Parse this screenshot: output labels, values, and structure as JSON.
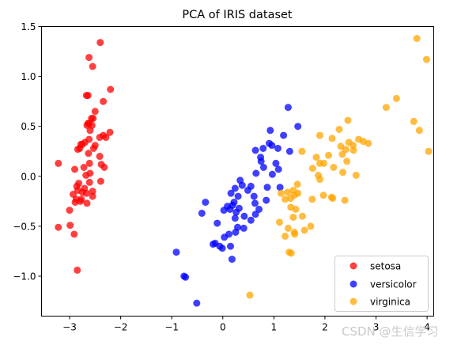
{
  "chart_data": {
    "type": "scatter",
    "title": "PCA of IRIS dataset",
    "xlabel": "",
    "ylabel": "",
    "xlim": [
      -3.55,
      4.13
    ],
    "ylim": [
      -1.4,
      1.5
    ],
    "xticks": [
      -3,
      -2,
      -1,
      0,
      1,
      2,
      3,
      4
    ],
    "xtick_labels": [
      "−3",
      "−2",
      "−1",
      "0",
      "1",
      "2",
      "3",
      "4"
    ],
    "yticks": [
      -1.0,
      -0.5,
      0.0,
      0.5,
      1.0,
      1.5
    ],
    "ytick_labels": [
      "−1.0",
      "−0.5",
      "0.0",
      "0.5",
      "1.0",
      "1.5"
    ],
    "grid": false,
    "legend": "lower-right",
    "marker_alpha": 0.75,
    "series": [
      {
        "name": "setosa",
        "color": "#ff0000",
        "points": [
          [
            -2.4,
            1.34
          ],
          [
            -2.62,
            1.19
          ],
          [
            -2.55,
            1.1
          ],
          [
            -2.67,
            0.81
          ],
          [
            -2.64,
            0.81
          ],
          [
            -2.2,
            0.87
          ],
          [
            -2.34,
            0.75
          ],
          [
            -2.5,
            0.65
          ],
          [
            -2.57,
            0.58
          ],
          [
            -2.54,
            0.58
          ],
          [
            -2.62,
            0.53
          ],
          [
            -2.56,
            0.51
          ],
          [
            -2.64,
            0.53
          ],
          [
            -2.66,
            0.51
          ],
          [
            -2.21,
            0.44
          ],
          [
            -2.34,
            0.41
          ],
          [
            -2.29,
            0.39
          ],
          [
            -2.41,
            0.39
          ],
          [
            -2.6,
            0.46
          ],
          [
            -2.5,
            0.31
          ],
          [
            -2.62,
            0.37
          ],
          [
            -2.7,
            0.34
          ],
          [
            -2.75,
            0.32
          ],
          [
            -2.78,
            0.32
          ],
          [
            -2.84,
            0.27
          ],
          [
            -2.8,
            0.28
          ],
          [
            -2.53,
            0.28
          ],
          [
            -2.63,
            0.23
          ],
          [
            -2.41,
            0.2
          ],
          [
            -3.22,
            0.13
          ],
          [
            -2.38,
            0.12
          ],
          [
            -2.61,
            0.13
          ],
          [
            -2.9,
            0.07
          ],
          [
            -2.72,
            0.09
          ],
          [
            -2.32,
            0.09
          ],
          [
            -2.68,
            0.01
          ],
          [
            -2.6,
            0.03
          ],
          [
            -2.39,
            -0.05
          ],
          [
            -2.61,
            -0.06
          ],
          [
            -2.82,
            -0.07
          ],
          [
            -2.86,
            -0.1
          ],
          [
            -2.71,
            -0.12
          ],
          [
            -2.84,
            -0.14
          ],
          [
            -2.93,
            -0.18
          ],
          [
            -2.55,
            -0.15
          ],
          [
            -2.75,
            -0.16
          ],
          [
            -2.67,
            -0.17
          ],
          [
            -2.87,
            -0.23
          ],
          [
            -2.79,
            -0.25
          ],
          [
            -2.66,
            -0.27
          ],
          [
            -2.77,
            -0.23
          ],
          [
            -2.55,
            -0.2
          ],
          [
            -3.0,
            -0.34
          ],
          [
            -2.89,
            -0.26
          ],
          [
            -3.22,
            -0.51
          ],
          [
            -2.99,
            -0.49
          ],
          [
            -2.91,
            -0.58
          ],
          [
            -2.85,
            -0.94
          ]
        ]
      },
      {
        "name": "versicolor",
        "color": "#0000ff",
        "points": [
          [
            1.28,
            0.69
          ],
          [
            0.93,
            0.46
          ],
          [
            1.47,
            0.5
          ],
          [
            1.19,
            0.41
          ],
          [
            0.91,
            0.33
          ],
          [
            0.96,
            0.31
          ],
          [
            0.79,
            0.28
          ],
          [
            0.64,
            0.26
          ],
          [
            1.08,
            0.28
          ],
          [
            1.31,
            0.25
          ],
          [
            0.74,
            0.19
          ],
          [
            0.75,
            0.15
          ],
          [
            1.04,
            0.13
          ],
          [
            0.8,
            0.09
          ],
          [
            1.09,
            0.07
          ],
          [
            0.65,
            0.03
          ],
          [
            0.97,
            0.02
          ],
          [
            0.34,
            -0.04
          ],
          [
            0.38,
            -0.09
          ],
          [
            0.55,
            -0.1
          ],
          [
            0.87,
            -0.11
          ],
          [
            0.24,
            -0.12
          ],
          [
            0.49,
            -0.14
          ],
          [
            1.12,
            -0.11
          ],
          [
            0.16,
            -0.17
          ],
          [
            0.3,
            -0.2
          ],
          [
            0.22,
            -0.26
          ],
          [
            -0.34,
            -0.26
          ],
          [
            0.61,
            -0.2
          ],
          [
            0.85,
            -0.24
          ],
          [
            0.09,
            -0.3
          ],
          [
            0.19,
            -0.29
          ],
          [
            0.32,
            -0.32
          ],
          [
            0.63,
            -0.27
          ],
          [
            0.26,
            -0.36
          ],
          [
            0.14,
            -0.33
          ],
          [
            0.71,
            -0.33
          ],
          [
            0.02,
            -0.34
          ],
          [
            -0.41,
            -0.37
          ],
          [
            0.42,
            -0.4
          ],
          [
            0.24,
            -0.42
          ],
          [
            0.64,
            -0.38
          ],
          [
            0.55,
            -0.44
          ],
          [
            -0.11,
            -0.47
          ],
          [
            0.29,
            -0.51
          ],
          [
            0.25,
            -0.56
          ],
          [
            0.12,
            -0.58
          ],
          [
            0.03,
            -0.61
          ],
          [
            0.41,
            -0.52
          ],
          [
            -0.15,
            -0.67
          ],
          [
            -0.19,
            -0.68
          ],
          [
            -0.06,
            -0.7
          ],
          [
            -0.01,
            -0.72
          ],
          [
            0.15,
            -0.7
          ],
          [
            0.18,
            -0.83
          ],
          [
            -0.91,
            -0.76
          ],
          [
            -0.76,
            -1.0
          ],
          [
            -0.73,
            -1.01
          ],
          [
            -0.51,
            -1.27
          ]
        ]
      },
      {
        "name": "virginica",
        "color": "#ffa500",
        "points": [
          [
            3.8,
            1.38
          ],
          [
            3.99,
            1.17
          ],
          [
            3.4,
            0.78
          ],
          [
            3.2,
            0.69
          ],
          [
            2.45,
            0.56
          ],
          [
            3.74,
            0.55
          ],
          [
            2.28,
            0.47
          ],
          [
            3.85,
            0.46
          ],
          [
            1.9,
            0.41
          ],
          [
            2.14,
            0.38
          ],
          [
            2.66,
            0.37
          ],
          [
            2.75,
            0.35
          ],
          [
            2.47,
            0.34
          ],
          [
            2.85,
            0.33
          ],
          [
            2.55,
            0.31
          ],
          [
            2.31,
            0.3
          ],
          [
            2.41,
            0.27
          ],
          [
            2.34,
            0.22
          ],
          [
            1.55,
            0.25
          ],
          [
            2.07,
            0.21
          ],
          [
            1.83,
            0.19
          ],
          [
            2.56,
            0.26
          ],
          [
            4.03,
            0.25
          ],
          [
            1.98,
            0.13
          ],
          [
            1.9,
            0.13
          ],
          [
            2.17,
            0.09
          ],
          [
            2.35,
            0.04
          ],
          [
            1.76,
            0.08
          ],
          [
            2.43,
            0.15
          ],
          [
            2.61,
            0.01
          ],
          [
            1.87,
            0.01
          ],
          [
            1.46,
            -0.08
          ],
          [
            1.9,
            -0.03
          ],
          [
            1.38,
            -0.14
          ],
          [
            1.27,
            -0.16
          ],
          [
            1.14,
            -0.17
          ],
          [
            1.47,
            -0.17
          ],
          [
            1.4,
            -0.19
          ],
          [
            1.33,
            -0.22
          ],
          [
            1.75,
            -0.23
          ],
          [
            1.97,
            -0.19
          ],
          [
            2.13,
            -0.21
          ],
          [
            2.15,
            -0.22
          ],
          [
            2.39,
            -0.24
          ],
          [
            1.22,
            -0.23
          ],
          [
            1.33,
            -0.31
          ],
          [
            1.43,
            -0.33
          ],
          [
            1.38,
            -0.41
          ],
          [
            1.56,
            -0.4
          ],
          [
            1.11,
            -0.46
          ],
          [
            1.28,
            -0.52
          ],
          [
            1.72,
            -0.5
          ],
          [
            1.6,
            -0.54
          ],
          [
            1.4,
            -0.56
          ],
          [
            1.41,
            -0.58
          ],
          [
            1.22,
            -0.6
          ],
          [
            1.3,
            -0.76
          ],
          [
            1.34,
            -0.77
          ],
          [
            0.53,
            -1.19
          ]
        ]
      }
    ]
  },
  "watermark": "CSDN @生信学习"
}
